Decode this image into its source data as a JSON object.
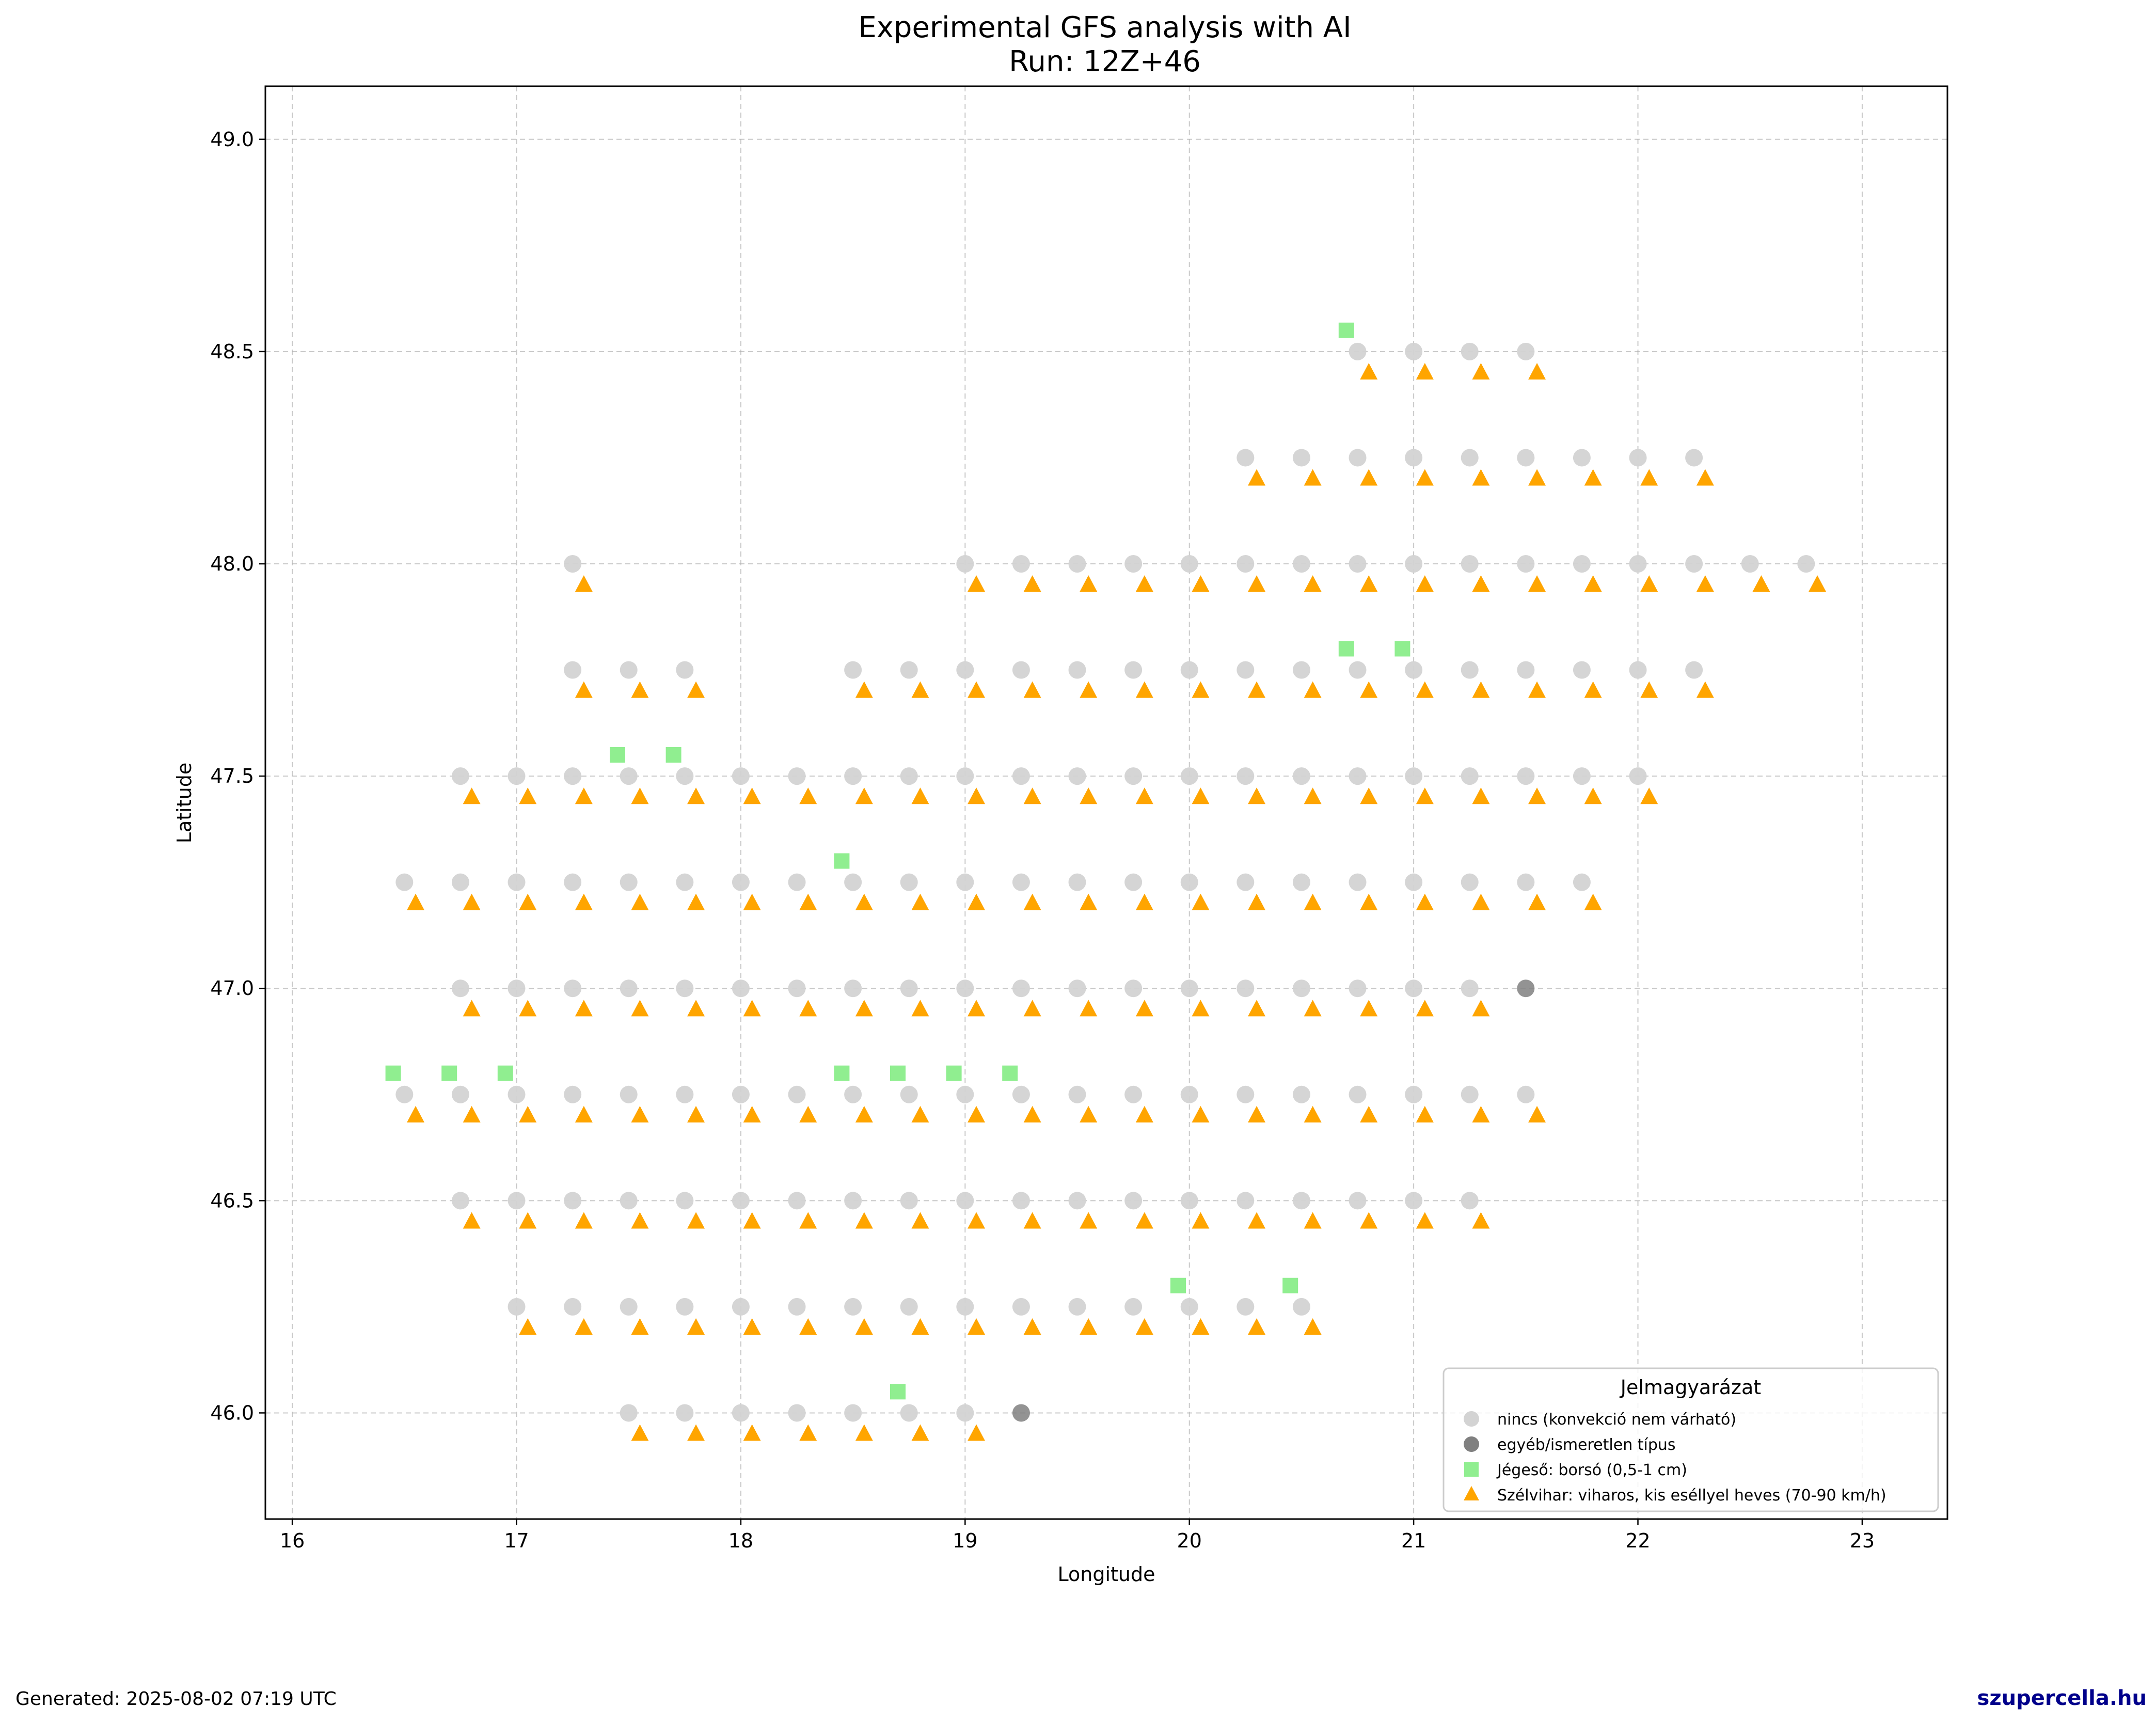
{
  "footer": {
    "generated": "Generated: 2025-08-02 07:19 UTC",
    "brand": "szupercella.hu"
  },
  "chart_data": {
    "type": "scatter",
    "title": "Experimental GFS analysis with AI",
    "subtitle": "Run: 12Z+46",
    "xlabel": "Longitude",
    "ylabel": "Latitude",
    "xlim": [
      15.88,
      23.38
    ],
    "ylim": [
      45.75,
      49.125
    ],
    "xticks": [
      16,
      17,
      18,
      19,
      20,
      21,
      22,
      23
    ],
    "xtick_labels": [
      "16",
      "17",
      "18",
      "19",
      "20",
      "21",
      "22",
      "23"
    ],
    "yticks": [
      46.0,
      46.5,
      47.0,
      47.5,
      48.0,
      48.5,
      49.0
    ],
    "ytick_labels": [
      "46.0",
      "46.5",
      "47.0",
      "47.5",
      "48.0",
      "48.5",
      "49.0"
    ],
    "grid": true,
    "legend": {
      "title": "Jelmagyarázat",
      "position": "lower right",
      "entries": [
        {
          "label": "nincs (konvekció nem várható)",
          "marker": "circle",
          "color": "#d3d3d3"
        },
        {
          "label": "egyéb/ismeretlen típus",
          "marker": "circle",
          "color": "#808080"
        },
        {
          "label": "Jégeső: borsó (0,5-1 cm)",
          "marker": "square",
          "color": "#90ee90"
        },
        {
          "label": "Szélvihar: viharos, kis eséllyel heves (70-90 km/h)",
          "marker": "triangle",
          "color": "#ffa500"
        }
      ]
    },
    "rows": [
      {
        "lat": 48.5,
        "circle_lons": [
          20.75,
          21.0,
          21.25,
          21.5
        ],
        "triangle_lons": [
          20.75,
          21.0,
          21.25,
          21.5
        ]
      },
      {
        "lat": 48.25,
        "circle_lons": [
          20.25,
          20.5,
          20.75,
          21.0,
          21.25,
          21.5,
          21.75,
          22.0,
          22.25
        ],
        "triangle_lons": [
          20.25,
          20.5,
          20.75,
          21.0,
          21.25,
          21.5,
          21.75,
          22.0,
          22.25
        ]
      },
      {
        "lat": 48.0,
        "circle_lons": [
          17.25,
          19.0,
          19.25,
          19.5,
          19.75,
          20.0,
          20.25,
          20.5,
          20.75,
          21.0,
          21.25,
          21.5,
          21.75,
          22.0,
          22.25,
          22.5,
          22.75
        ],
        "triangle_lons": [
          17.25,
          19.0,
          19.25,
          19.5,
          19.75,
          20.0,
          20.25,
          20.5,
          20.75,
          21.0,
          21.25,
          21.5,
          21.75,
          22.0,
          22.25,
          22.5,
          22.75
        ]
      },
      {
        "lat": 47.75,
        "circle_lons": [
          17.25,
          17.5,
          17.75,
          18.5,
          18.75,
          19.0,
          19.25,
          19.5,
          19.75,
          20.0,
          20.25,
          20.5,
          20.75,
          21.0,
          21.25,
          21.5,
          21.75,
          22.0,
          22.25
        ],
        "triangle_lons": [
          17.25,
          17.5,
          17.75,
          18.5,
          18.75,
          19.0,
          19.25,
          19.5,
          19.75,
          20.0,
          20.25,
          20.5,
          20.75,
          21.0,
          21.25,
          21.5,
          21.75,
          22.0,
          22.25
        ]
      },
      {
        "lat": 47.5,
        "circle_lons": [
          16.75,
          17.0,
          17.25,
          17.5,
          17.75,
          18.0,
          18.25,
          18.5,
          18.75,
          19.0,
          19.25,
          19.5,
          19.75,
          20.0,
          20.25,
          20.5,
          20.75,
          21.0,
          21.25,
          21.5,
          21.75,
          22.0
        ],
        "triangle_lons": [
          16.75,
          17.0,
          17.25,
          17.5,
          17.75,
          18.0,
          18.25,
          18.5,
          18.75,
          19.0,
          19.25,
          19.5,
          19.75,
          20.0,
          20.25,
          20.5,
          20.75,
          21.0,
          21.25,
          21.5,
          21.75,
          22.0
        ]
      },
      {
        "lat": 47.25,
        "circle_lons": [
          16.5,
          16.75,
          17.0,
          17.25,
          17.5,
          17.75,
          18.0,
          18.25,
          18.5,
          18.75,
          19.0,
          19.25,
          19.5,
          19.75,
          20.0,
          20.25,
          20.5,
          20.75,
          21.0,
          21.25,
          21.5,
          21.75
        ],
        "triangle_lons": [
          16.5,
          16.75,
          17.0,
          17.25,
          17.5,
          17.75,
          18.0,
          18.25,
          18.5,
          18.75,
          19.0,
          19.25,
          19.5,
          19.75,
          20.0,
          20.25,
          20.5,
          20.75,
          21.0,
          21.25,
          21.5,
          21.75
        ]
      },
      {
        "lat": 47.0,
        "circle_lons": [
          16.75,
          17.0,
          17.25,
          17.5,
          17.75,
          18.0,
          18.25,
          18.5,
          18.75,
          19.0,
          19.25,
          19.5,
          19.75,
          20.0,
          20.25,
          20.5,
          20.75,
          21.0,
          21.25
        ],
        "triangle_lons": [
          16.75,
          17.0,
          17.25,
          17.5,
          17.75,
          18.0,
          18.25,
          18.5,
          18.75,
          19.0,
          19.25,
          19.5,
          19.75,
          20.0,
          20.25,
          20.5,
          20.75,
          21.0,
          21.25
        ]
      },
      {
        "lat": 46.75,
        "circle_lons": [
          16.5,
          16.75,
          17.0,
          17.25,
          17.5,
          17.75,
          18.0,
          18.25,
          18.5,
          18.75,
          19.0,
          19.25,
          19.5,
          19.75,
          20.0,
          20.25,
          20.5,
          20.75,
          21.0,
          21.25,
          21.5
        ],
        "triangle_lons": [
          16.5,
          16.75,
          17.0,
          17.25,
          17.5,
          17.75,
          18.0,
          18.25,
          18.5,
          18.75,
          19.0,
          19.25,
          19.5,
          19.75,
          20.0,
          20.25,
          20.5,
          20.75,
          21.0,
          21.25,
          21.5
        ]
      },
      {
        "lat": 46.5,
        "circle_lons": [
          16.75,
          17.0,
          17.25,
          17.5,
          17.75,
          18.0,
          18.25,
          18.5,
          18.75,
          19.0,
          19.25,
          19.5,
          19.75,
          20.0,
          20.25,
          20.5,
          20.75,
          21.0,
          21.25
        ],
        "triangle_lons": [
          16.75,
          17.0,
          17.25,
          17.5,
          17.75,
          18.0,
          18.25,
          18.5,
          18.75,
          19.0,
          19.25,
          19.5,
          19.75,
          20.0,
          20.25,
          20.5,
          20.75,
          21.0,
          21.25
        ]
      },
      {
        "lat": 46.25,
        "circle_lons": [
          17.0,
          17.25,
          17.5,
          17.75,
          18.0,
          18.25,
          18.5,
          18.75,
          19.0,
          19.25,
          19.5,
          19.75,
          20.0,
          20.25,
          20.5
        ],
        "triangle_lons": [
          17.0,
          17.25,
          17.5,
          17.75,
          18.0,
          18.25,
          18.5,
          18.75,
          19.0,
          19.25,
          19.5,
          19.75,
          20.0,
          20.25,
          20.5
        ]
      },
      {
        "lat": 46.0,
        "circle_lons": [
          17.5,
          17.75,
          18.0,
          18.25,
          18.5,
          18.75,
          19.0
        ],
        "triangle_lons": [
          17.5,
          17.75,
          18.0,
          18.25,
          18.5,
          18.75,
          19.0
        ]
      }
    ],
    "dark_points": [
      {
        "lon": 21.5,
        "lat": 47.0
      },
      {
        "lon": 19.25,
        "lat": 46.0
      }
    ],
    "hail_points": [
      {
        "lon": 20.75,
        "lat": 48.5
      },
      {
        "lon": 20.75,
        "lat": 47.75
      },
      {
        "lon": 21.0,
        "lat": 47.75
      },
      {
        "lon": 17.5,
        "lat": 47.5
      },
      {
        "lon": 17.75,
        "lat": 47.5
      },
      {
        "lon": 18.5,
        "lat": 47.25
      },
      {
        "lon": 16.5,
        "lat": 46.75
      },
      {
        "lon": 16.75,
        "lat": 46.75
      },
      {
        "lon": 17.0,
        "lat": 46.75
      },
      {
        "lon": 18.5,
        "lat": 46.75
      },
      {
        "lon": 18.75,
        "lat": 46.75
      },
      {
        "lon": 19.0,
        "lat": 46.75
      },
      {
        "lon": 19.25,
        "lat": 46.75
      },
      {
        "lon": 20.0,
        "lat": 46.25
      },
      {
        "lon": 20.5,
        "lat": 46.25
      },
      {
        "lon": 18.75,
        "lat": 46.0
      }
    ]
  }
}
